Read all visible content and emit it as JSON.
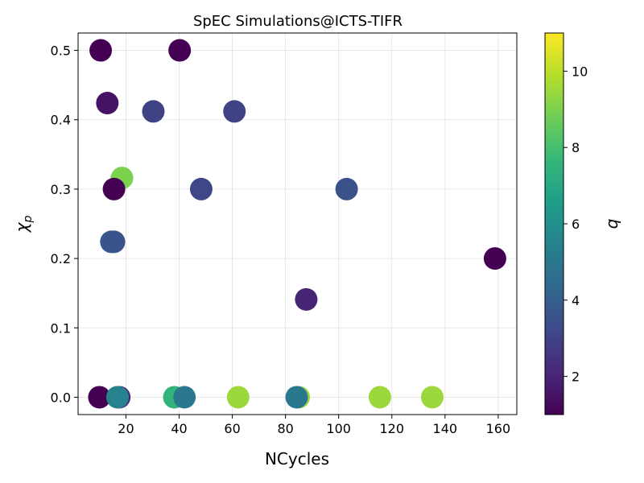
{
  "chart_data": {
    "type": "scatter",
    "title": "SpEC Simulations@ICTS-TIFR",
    "xlabel": "NCycles",
    "ylabel": "χ",
    "ylabel_sub": "p",
    "xlim": [
      2,
      167
    ],
    "ylim": [
      -0.025,
      0.525
    ],
    "xticks": [
      20,
      40,
      60,
      80,
      100,
      120,
      140,
      160
    ],
    "yticks": [
      0.0,
      0.1,
      0.2,
      0.3,
      0.4,
      0.5
    ],
    "grid": true,
    "colormap": "viridis",
    "color_variable": "q",
    "colorbar": {
      "label": "q",
      "range": [
        1,
        11
      ],
      "ticks": [
        2,
        4,
        6,
        8,
        10
      ],
      "position": "right"
    },
    "points": [
      {
        "x": 10.5,
        "y": 0.5,
        "q": 1.0
      },
      {
        "x": 40.2,
        "y": 0.5,
        "q": 1.0
      },
      {
        "x": 13.0,
        "y": 0.424,
        "q": 1.5
      },
      {
        "x": 30.3,
        "y": 0.412,
        "q": 3.0
      },
      {
        "x": 60.8,
        "y": 0.412,
        "q": 3.0
      },
      {
        "x": 18.5,
        "y": 0.316,
        "q": 9.0
      },
      {
        "x": 15.5,
        "y": 0.3,
        "q": 1.0
      },
      {
        "x": 48.3,
        "y": 0.3,
        "q": 3.2
      },
      {
        "x": 103.0,
        "y": 0.3,
        "q": 3.5
      },
      {
        "x": 14.5,
        "y": 0.224,
        "q": 3.8
      },
      {
        "x": 15.5,
        "y": 0.224,
        "q": 3.6
      },
      {
        "x": 158.8,
        "y": 0.2,
        "q": 1.0
      },
      {
        "x": 87.8,
        "y": 0.141,
        "q": 2.0
      },
      {
        "x": 10.0,
        "y": 0.0,
        "q": 1.0
      },
      {
        "x": 17.5,
        "y": 0.0,
        "q": 2.2
      },
      {
        "x": 16.8,
        "y": 0.0,
        "q": 5.5
      },
      {
        "x": 38.2,
        "y": 0.0,
        "q": 7.5
      },
      {
        "x": 42.0,
        "y": 0.0,
        "q": 5.0
      },
      {
        "x": 62.2,
        "y": 0.0,
        "q": 9.5
      },
      {
        "x": 85.0,
        "y": 0.0,
        "q": 9.5
      },
      {
        "x": 84.2,
        "y": 0.0,
        "q": 5.0
      },
      {
        "x": 115.5,
        "y": 0.0,
        "q": 9.5
      },
      {
        "x": 135.2,
        "y": 0.0,
        "q": 9.5
      }
    ]
  }
}
